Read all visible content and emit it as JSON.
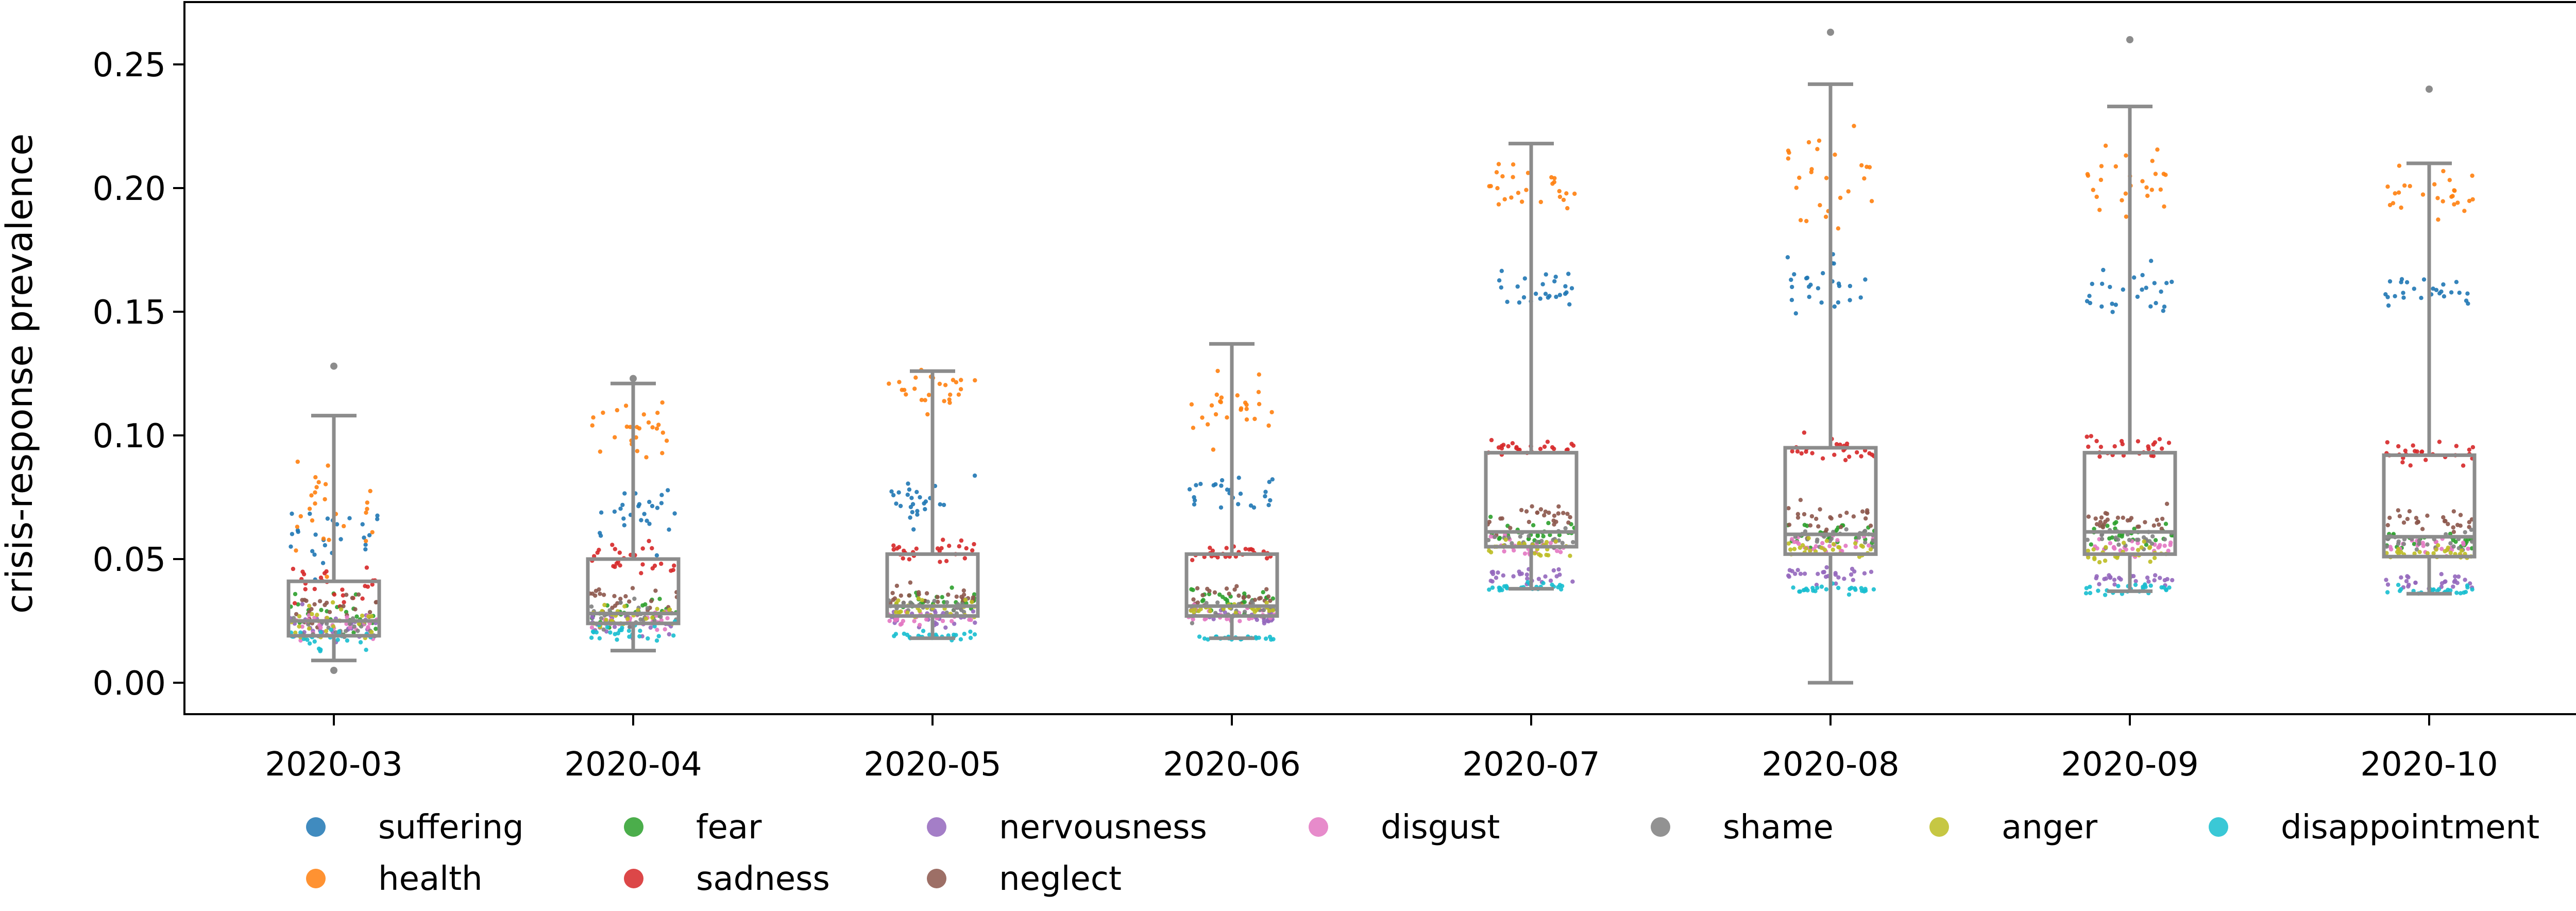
{
  "chart_data": {
    "type": "box-strip",
    "ylabel": "crisis-response prevalence",
    "xlabel": "",
    "ylim": [
      -0.013,
      0.275
    ],
    "yticks": [
      0.0,
      0.05,
      0.1,
      0.15,
      0.2,
      0.25
    ],
    "ytick_labels": [
      "0.00",
      "0.05",
      "0.10",
      "0.15",
      "0.20",
      "0.25"
    ],
    "grid": false,
    "legend_position": "bottom",
    "categories": [
      "2020-03",
      "2020-04",
      "2020-05",
      "2020-06",
      "2020-07",
      "2020-08",
      "2020-09",
      "2020-10"
    ],
    "boxes": [
      {
        "whisker_low": 0.009,
        "q1": 0.019,
        "median": 0.025,
        "q3": 0.041,
        "whisker_high": 0.108,
        "outliers": [
          0.128,
          0.005
        ]
      },
      {
        "whisker_low": 0.013,
        "q1": 0.024,
        "median": 0.028,
        "q3": 0.05,
        "whisker_high": 0.121,
        "outliers": [
          0.123
        ]
      },
      {
        "whisker_low": 0.018,
        "q1": 0.027,
        "median": 0.031,
        "q3": 0.052,
        "whisker_high": 0.126,
        "outliers": []
      },
      {
        "whisker_low": 0.018,
        "q1": 0.027,
        "median": 0.031,
        "q3": 0.052,
        "whisker_high": 0.137,
        "outliers": []
      },
      {
        "whisker_low": 0.038,
        "q1": 0.055,
        "median": 0.061,
        "q3": 0.093,
        "whisker_high": 0.218,
        "outliers": []
      },
      {
        "whisker_low": 0.0,
        "q1": 0.052,
        "median": 0.06,
        "q3": 0.095,
        "whisker_high": 0.242,
        "outliers": [
          0.263
        ]
      },
      {
        "whisker_low": 0.037,
        "q1": 0.052,
        "median": 0.061,
        "q3": 0.093,
        "whisker_high": 0.233,
        "outliers": [
          0.26
        ]
      },
      {
        "whisker_low": 0.036,
        "q1": 0.051,
        "median": 0.059,
        "q3": 0.092,
        "whisker_high": 0.21,
        "outliers": [
          0.24
        ]
      }
    ],
    "series": [
      {
        "name": "suffering",
        "color": "#1f77b4",
        "values": [
          0.057,
          0.068,
          0.073,
          0.077,
          0.158,
          0.161,
          0.159,
          0.157
        ],
        "spread": [
          0.018,
          0.012,
          0.009,
          0.008,
          0.009,
          0.01,
          0.009,
          0.009
        ]
      },
      {
        "name": "health",
        "color": "#ff7f0e",
        "values": [
          0.07,
          0.105,
          0.118,
          0.112,
          0.2,
          0.203,
          0.203,
          0.198
        ],
        "spread": [
          0.018,
          0.013,
          0.008,
          0.013,
          0.011,
          0.02,
          0.015,
          0.009
        ]
      },
      {
        "name": "fear",
        "color": "#2ca02c",
        "values": [
          0.027,
          0.028,
          0.032,
          0.033,
          0.06,
          0.06,
          0.06,
          0.058
        ],
        "spread": [
          0.008,
          0.006,
          0.005,
          0.005,
          0.005,
          0.005,
          0.005,
          0.004
        ]
      },
      {
        "name": "sadness",
        "color": "#d62728",
        "values": [
          0.04,
          0.05,
          0.053,
          0.052,
          0.095,
          0.095,
          0.095,
          0.093
        ],
        "spread": [
          0.01,
          0.006,
          0.004,
          0.003,
          0.003,
          0.004,
          0.004,
          0.004
        ]
      },
      {
        "name": "nervousness",
        "color": "#9467bd",
        "values": [
          0.023,
          0.024,
          0.026,
          0.027,
          0.043,
          0.043,
          0.042,
          0.041
        ],
        "spread": [
          0.006,
          0.005,
          0.004,
          0.003,
          0.003,
          0.004,
          0.003,
          0.003
        ]
      },
      {
        "name": "neglect",
        "color": "#8c564b",
        "values": [
          0.03,
          0.033,
          0.036,
          0.035,
          0.066,
          0.067,
          0.066,
          0.065
        ],
        "spread": [
          0.008,
          0.006,
          0.004,
          0.004,
          0.005,
          0.006,
          0.005,
          0.004
        ]
      },
      {
        "name": "disgust",
        "color": "#e377c2",
        "values": [
          0.024,
          0.025,
          0.027,
          0.027,
          0.056,
          0.056,
          0.055,
          0.055
        ],
        "spread": [
          0.006,
          0.004,
          0.003,
          0.003,
          0.004,
          0.004,
          0.004,
          0.003
        ]
      },
      {
        "name": "shame",
        "color": "#7f7f7f",
        "values": [
          0.022,
          0.026,
          0.03,
          0.029,
          0.058,
          0.059,
          0.058,
          0.057
        ],
        "spread": [
          0.007,
          0.005,
          0.004,
          0.004,
          0.004,
          0.004,
          0.004,
          0.004
        ]
      },
      {
        "name": "anger",
        "color": "#bcbd22",
        "values": [
          0.025,
          0.027,
          0.03,
          0.03,
          0.054,
          0.054,
          0.053,
          0.052
        ],
        "spread": [
          0.007,
          0.005,
          0.004,
          0.003,
          0.004,
          0.004,
          0.004,
          0.003
        ]
      },
      {
        "name": "disappointment",
        "color": "#17becf",
        "values": [
          0.018,
          0.02,
          0.019,
          0.018,
          0.039,
          0.038,
          0.038,
          0.037
        ],
        "spread": [
          0.004,
          0.004,
          0.002,
          0.001,
          0.002,
          0.002,
          0.002,
          0.002
        ]
      }
    ],
    "legend_rows": [
      [
        "suffering",
        "fear",
        "nervousness",
        "disgust",
        "shame",
        "anger",
        "disappointment"
      ],
      [
        "health",
        "sadness",
        "neglect"
      ]
    ],
    "box_color": "#8c8c8c"
  }
}
